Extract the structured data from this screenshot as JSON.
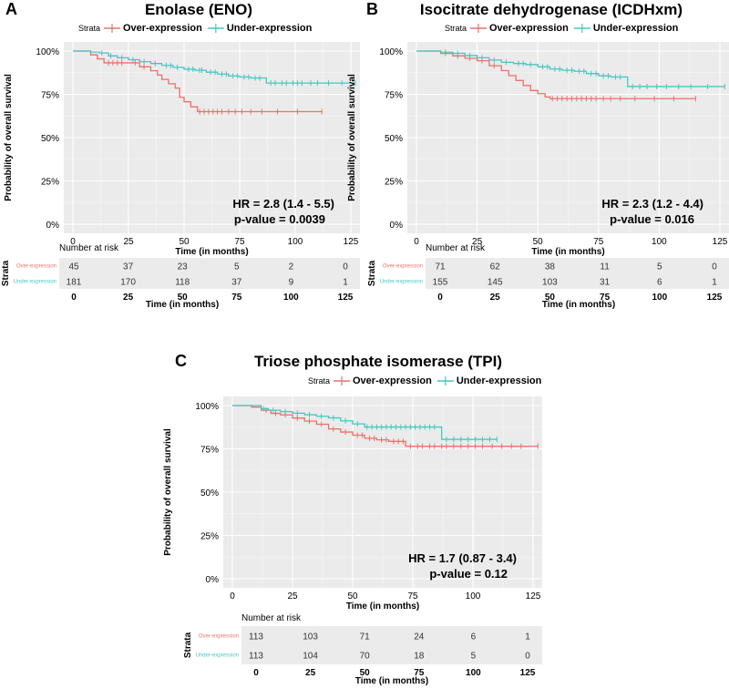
{
  "legend_title": "Strata",
  "xlabel": "Time (in months)",
  "ylabel": "Probability of overall survival",
  "risk_title": "Number at risk",
  "risk_ylabel": "Strata",
  "colors": {
    "over": "#e8736c",
    "under": "#49c6c1",
    "panel_bg": "#ebebeb",
    "grid": "#ffffff"
  },
  "chart_data": [
    {
      "panel_label": "A",
      "type": "line",
      "title": "Enolase (ENO)",
      "xlim": [
        0,
        125
      ],
      "ylim": [
        0,
        100
      ],
      "x_ticks": [
        "0",
        "25",
        "50",
        "75",
        "100",
        "125"
      ],
      "y_ticks": [
        "0%",
        "25%",
        "50%",
        "75%",
        "100%"
      ],
      "hr": "HR = 2.8 (1.4 - 5.5)",
      "pvalue": "p-value = 0.0039",
      "series": [
        {
          "name": "Over-expression",
          "key": "over",
          "x": [
            0,
            8,
            11,
            14,
            24,
            30,
            35,
            38,
            40,
            43,
            46,
            48,
            50,
            53,
            56,
            112
          ],
          "y": [
            100,
            97.8,
            95.5,
            93.2,
            93.2,
            90.9,
            88.6,
            86.1,
            83.6,
            81.1,
            78.6,
            73.3,
            70.7,
            67.8,
            65,
            65
          ],
          "censor_x": [
            16,
            18,
            20,
            22,
            28,
            32,
            57,
            59,
            61,
            63,
            65,
            67,
            70,
            73,
            76,
            80,
            85,
            92,
            101,
            112
          ]
        },
        {
          "name": "Under-expression",
          "key": "under",
          "x": [
            0,
            8,
            12,
            16,
            20,
            25,
            30,
            35,
            40,
            45,
            50,
            55,
            60,
            65,
            70,
            75,
            80,
            87,
            127
          ],
          "y": [
            100,
            99.4,
            98.9,
            97.2,
            96.1,
            95,
            93.9,
            92.8,
            91.7,
            90.6,
            89.5,
            88.9,
            87.8,
            86.7,
            85.6,
            85,
            84.4,
            81.5,
            81.5
          ],
          "censor_x": [
            13,
            17,
            22,
            27,
            32,
            37,
            42,
            44,
            47,
            52,
            54,
            57,
            58,
            62,
            64,
            67,
            69,
            72,
            74,
            77,
            79,
            82,
            84,
            89,
            91,
            94,
            96,
            99,
            101,
            103,
            107,
            110,
            115,
            121,
            127
          ]
        }
      ],
      "risk_table": {
        "times": [
          0,
          25,
          50,
          75,
          100,
          125
        ],
        "rows": [
          {
            "label": "Over-expression",
            "key": "over",
            "counts": [
              "45",
              "37",
              "23",
              "5",
              "2",
              "0"
            ]
          },
          {
            "label": "Under-expression",
            "key": "under",
            "counts": [
              "181",
              "170",
              "118",
              "37",
              "9",
              "1"
            ]
          }
        ]
      }
    },
    {
      "panel_label": "B",
      "type": "line",
      "title": "Isocitrate dehydrogenase (ICDHxm)",
      "xlim": [
        0,
        125
      ],
      "ylim": [
        0,
        100
      ],
      "x_ticks": [
        "0",
        "25",
        "50",
        "75",
        "100",
        "125"
      ],
      "y_ticks": [
        "0%",
        "25%",
        "50%",
        "75%",
        "100%"
      ],
      "hr": "HR = 2.3 (1.2 - 4.4)",
      "pvalue": "p-value = 0.016",
      "series": [
        {
          "name": "Over-expression",
          "key": "over",
          "x": [
            0,
            10,
            15,
            20,
            25,
            30,
            35,
            38,
            41,
            44,
            47,
            50,
            53,
            55,
            115
          ],
          "y": [
            100,
            98.6,
            97.2,
            95.8,
            94.4,
            91.5,
            88.7,
            85.8,
            83,
            80.1,
            77.2,
            75.4,
            73.5,
            72.5,
            72.5
          ],
          "censor_x": [
            12,
            17,
            22,
            27,
            32,
            56,
            58,
            60,
            62,
            64,
            66,
            68,
            70,
            72,
            74,
            77,
            80,
            84,
            90,
            98,
            106,
            115
          ]
        },
        {
          "name": "Under-expression",
          "key": "under",
          "x": [
            0,
            10,
            15,
            20,
            25,
            30,
            35,
            40,
            45,
            50,
            55,
            60,
            65,
            70,
            75,
            80,
            87,
            127
          ],
          "y": [
            100,
            99.4,
            98.7,
            97.4,
            96.1,
            94.8,
            93.5,
            92.8,
            92.2,
            90.9,
            89.6,
            88.9,
            88.3,
            87,
            85.7,
            85,
            79.5,
            79.5
          ],
          "censor_x": [
            12,
            17,
            22,
            27,
            32,
            37,
            42,
            44,
            47,
            52,
            54,
            57,
            59,
            62,
            64,
            67,
            69,
            72,
            74,
            77,
            79,
            82,
            84,
            89,
            92,
            95,
            99,
            103,
            108,
            113,
            120,
            127
          ]
        }
      ],
      "risk_table": {
        "times": [
          0,
          25,
          50,
          75,
          100,
          125
        ],
        "rows": [
          {
            "label": "Over-expression",
            "key": "over",
            "counts": [
              "71",
              "62",
              "38",
              "11",
              "5",
              "0"
            ]
          },
          {
            "label": "Under-expression",
            "key": "under",
            "counts": [
              "155",
              "145",
              "103",
              "31",
              "6",
              "1"
            ]
          }
        ]
      }
    },
    {
      "panel_label": "C",
      "type": "line",
      "title": "Triose phosphate isomerase (TPI)",
      "xlim": [
        0,
        125
      ],
      "ylim": [
        0,
        100
      ],
      "x_ticks": [
        "0",
        "25",
        "50",
        "75",
        "100",
        "125"
      ],
      "y_ticks": [
        "0%",
        "25%",
        "50%",
        "75%",
        "100%"
      ],
      "hr": "HR = 1.7 (0.87 - 3.4)",
      "pvalue": "p-value = 0.12",
      "series": [
        {
          "name": "Over-expression",
          "key": "over",
          "x": [
            0,
            8,
            12,
            16,
            20,
            25,
            30,
            35,
            40,
            45,
            50,
            55,
            60,
            65,
            72,
            127
          ],
          "y": [
            100,
            99.1,
            97.3,
            95.5,
            94.6,
            92.8,
            91,
            89.2,
            86.5,
            84.7,
            82.9,
            81.1,
            80.2,
            79.3,
            76.5,
            76.5
          ],
          "censor_x": [
            14,
            18,
            22,
            27,
            32,
            37,
            42,
            47,
            52,
            54,
            57,
            59,
            62,
            64,
            67,
            69,
            71,
            74,
            77,
            79,
            82,
            84,
            87,
            89,
            92,
            95,
            98,
            101,
            104,
            108,
            112,
            116,
            120,
            127
          ]
        },
        {
          "name": "Under-expression",
          "key": "under",
          "x": [
            0,
            12,
            15,
            20,
            25,
            30,
            35,
            40,
            45,
            50,
            55,
            87,
            110
          ],
          "y": [
            100,
            98.2,
            97.3,
            96.5,
            95.6,
            94.7,
            93.8,
            92.9,
            91.2,
            89.4,
            87.6,
            80.5,
            80.5
          ],
          "censor_x": [
            13,
            17,
            22,
            27,
            32,
            37,
            42,
            47,
            52,
            56,
            58,
            60,
            62,
            64,
            66,
            68,
            70,
            72,
            74,
            76,
            78,
            80,
            82,
            84,
            89,
            92,
            95,
            98,
            101,
            104,
            107,
            110
          ]
        }
      ],
      "risk_table": {
        "times": [
          0,
          25,
          50,
          75,
          100,
          125
        ],
        "rows": [
          {
            "label": "Over-expression",
            "key": "over",
            "counts": [
              "113",
              "103",
              "71",
              "24",
              "6",
              "1"
            ]
          },
          {
            "label": "Under-expression",
            "key": "under",
            "counts": [
              "113",
              "104",
              "70",
              "18",
              "5",
              "0"
            ]
          }
        ]
      }
    }
  ]
}
